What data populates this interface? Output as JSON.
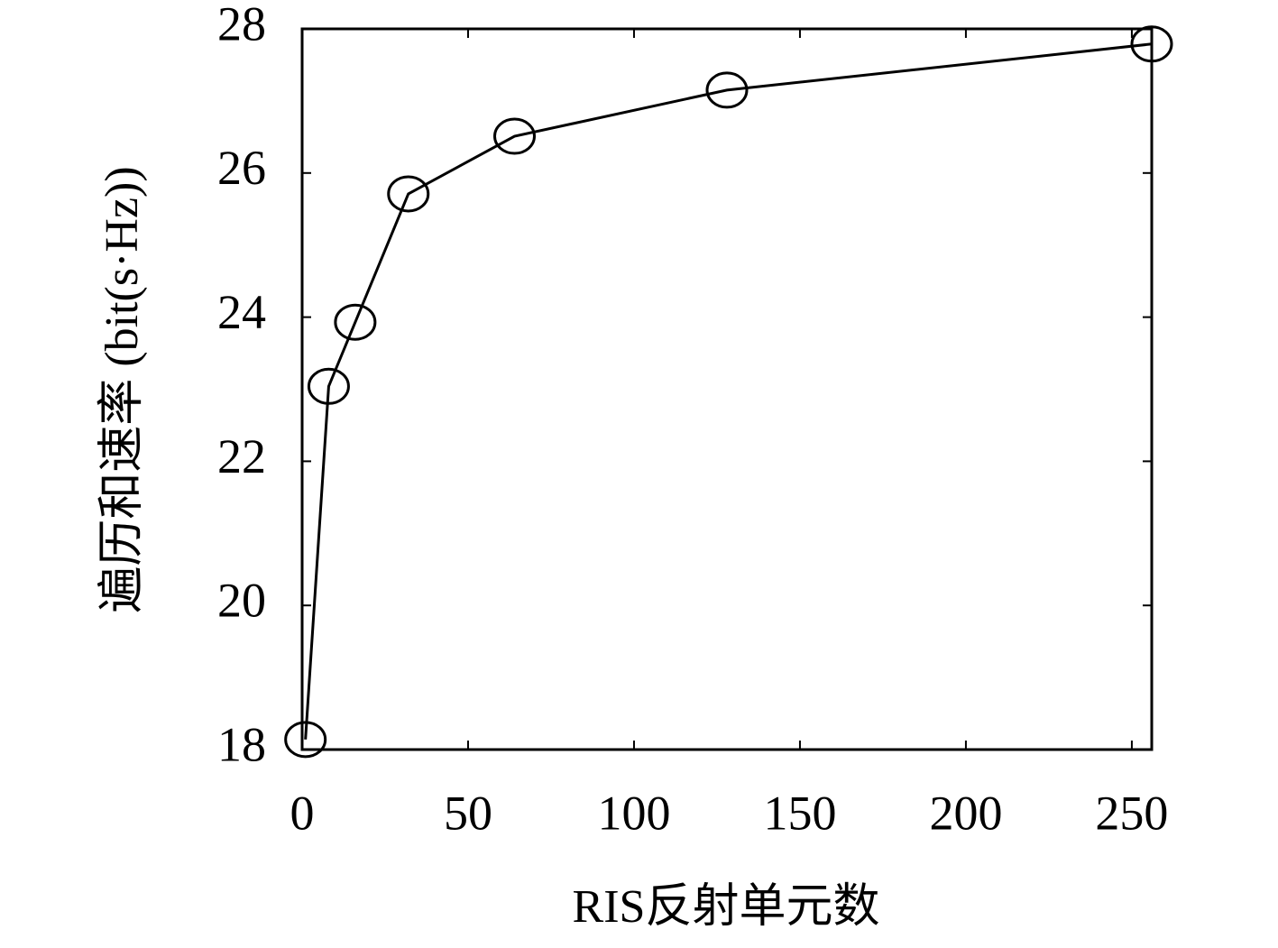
{
  "chart_data": {
    "type": "line",
    "xlabel": "RIS反射单元数",
    "ylabel": "遍历和速率 (bit(s·Hz))",
    "x": [
      1,
      8,
      16,
      32,
      64,
      128,
      256
    ],
    "series": [
      {
        "color": "#000000",
        "marker": "circle",
        "values": [
          18.14,
          23.04,
          23.93,
          25.71,
          26.51,
          27.15,
          27.79
        ]
      }
    ],
    "xlim": [
      0,
      256
    ],
    "xticks": [
      0,
      50,
      100,
      150,
      200,
      250
    ],
    "ylim": [
      18,
      28
    ],
    "yticks": [
      18,
      20,
      22,
      24,
      26,
      28
    ],
    "grid": false
  }
}
